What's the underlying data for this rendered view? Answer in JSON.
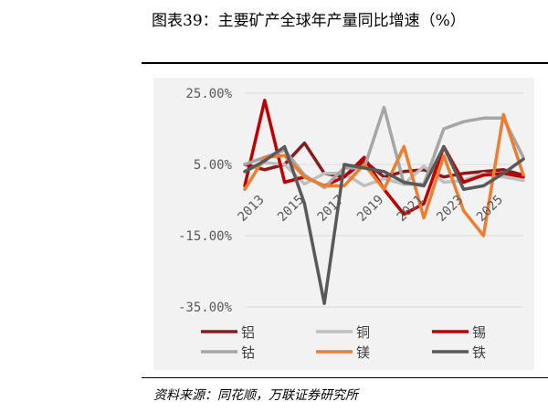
{
  "figure": {
    "title": "图表39：主要矿产全球年产量同比增速（%）",
    "source": "资料来源：同花顺，万联证券研究所"
  },
  "chart_data": {
    "type": "line",
    "x": [
      2012,
      2013,
      2014,
      2015,
      2016,
      2017,
      2018,
      2019,
      2020,
      2021,
      2022,
      2023,
      2024,
      2025,
      2026
    ],
    "x_tick_labels": [
      "2013",
      "2015",
      "2017",
      "2019",
      "2021",
      "2023",
      "2025"
    ],
    "x_tick_values": [
      2013,
      2015,
      2017,
      2019,
      2021,
      2023,
      2025
    ],
    "ylim": [
      -35,
      25
    ],
    "y_ticks": [
      25,
      5,
      -15,
      -35
    ],
    "y_tick_labels": [
      "25.00%",
      "5.00%",
      "-15.00%",
      "-35.00%"
    ],
    "grid": "horizontal",
    "legend_position": "bottom",
    "series": [
      {
        "name": "铝",
        "color": "#8b1a1a",
        "values": [
          5,
          3.5,
          5,
          11,
          2.5,
          1.5,
          6,
          1.5,
          3,
          3.5,
          1.5,
          2.5,
          3,
          3.5,
          2
        ]
      },
      {
        "name": "铜",
        "color": "#bfbfbf",
        "values": [
          3,
          5.5,
          5,
          -0.5,
          2.5,
          2.5,
          -1,
          1,
          -0.5,
          4.5,
          0,
          0.5,
          2.5,
          1.5,
          0.5
        ]
      },
      {
        "name": "锡",
        "color": "#c00000",
        "values": [
          -1,
          23,
          0,
          1.5,
          -1,
          1.5,
          7,
          -2,
          -9,
          -6,
          10,
          0,
          2,
          2.5,
          1.5
        ]
      },
      {
        "name": "钴",
        "color": "#a6a6a6",
        "values": [
          5,
          7,
          9,
          2,
          -1.5,
          4,
          4,
          21,
          -0.5,
          -0.5,
          15,
          17,
          18,
          18,
          7
        ]
      },
      {
        "name": "镁",
        "color": "#ed7d31",
        "values": [
          -2,
          7,
          7.5,
          1.5,
          -1,
          -1,
          5,
          -2,
          10,
          -10,
          7.5,
          -8,
          -15,
          19,
          2
        ]
      },
      {
        "name": "铁",
        "color": "#595959",
        "values": [
          3,
          6,
          10,
          -6,
          -34,
          5,
          4,
          3,
          0,
          -1,
          10,
          -2,
          -1,
          2.5,
          6.5
        ]
      }
    ]
  }
}
